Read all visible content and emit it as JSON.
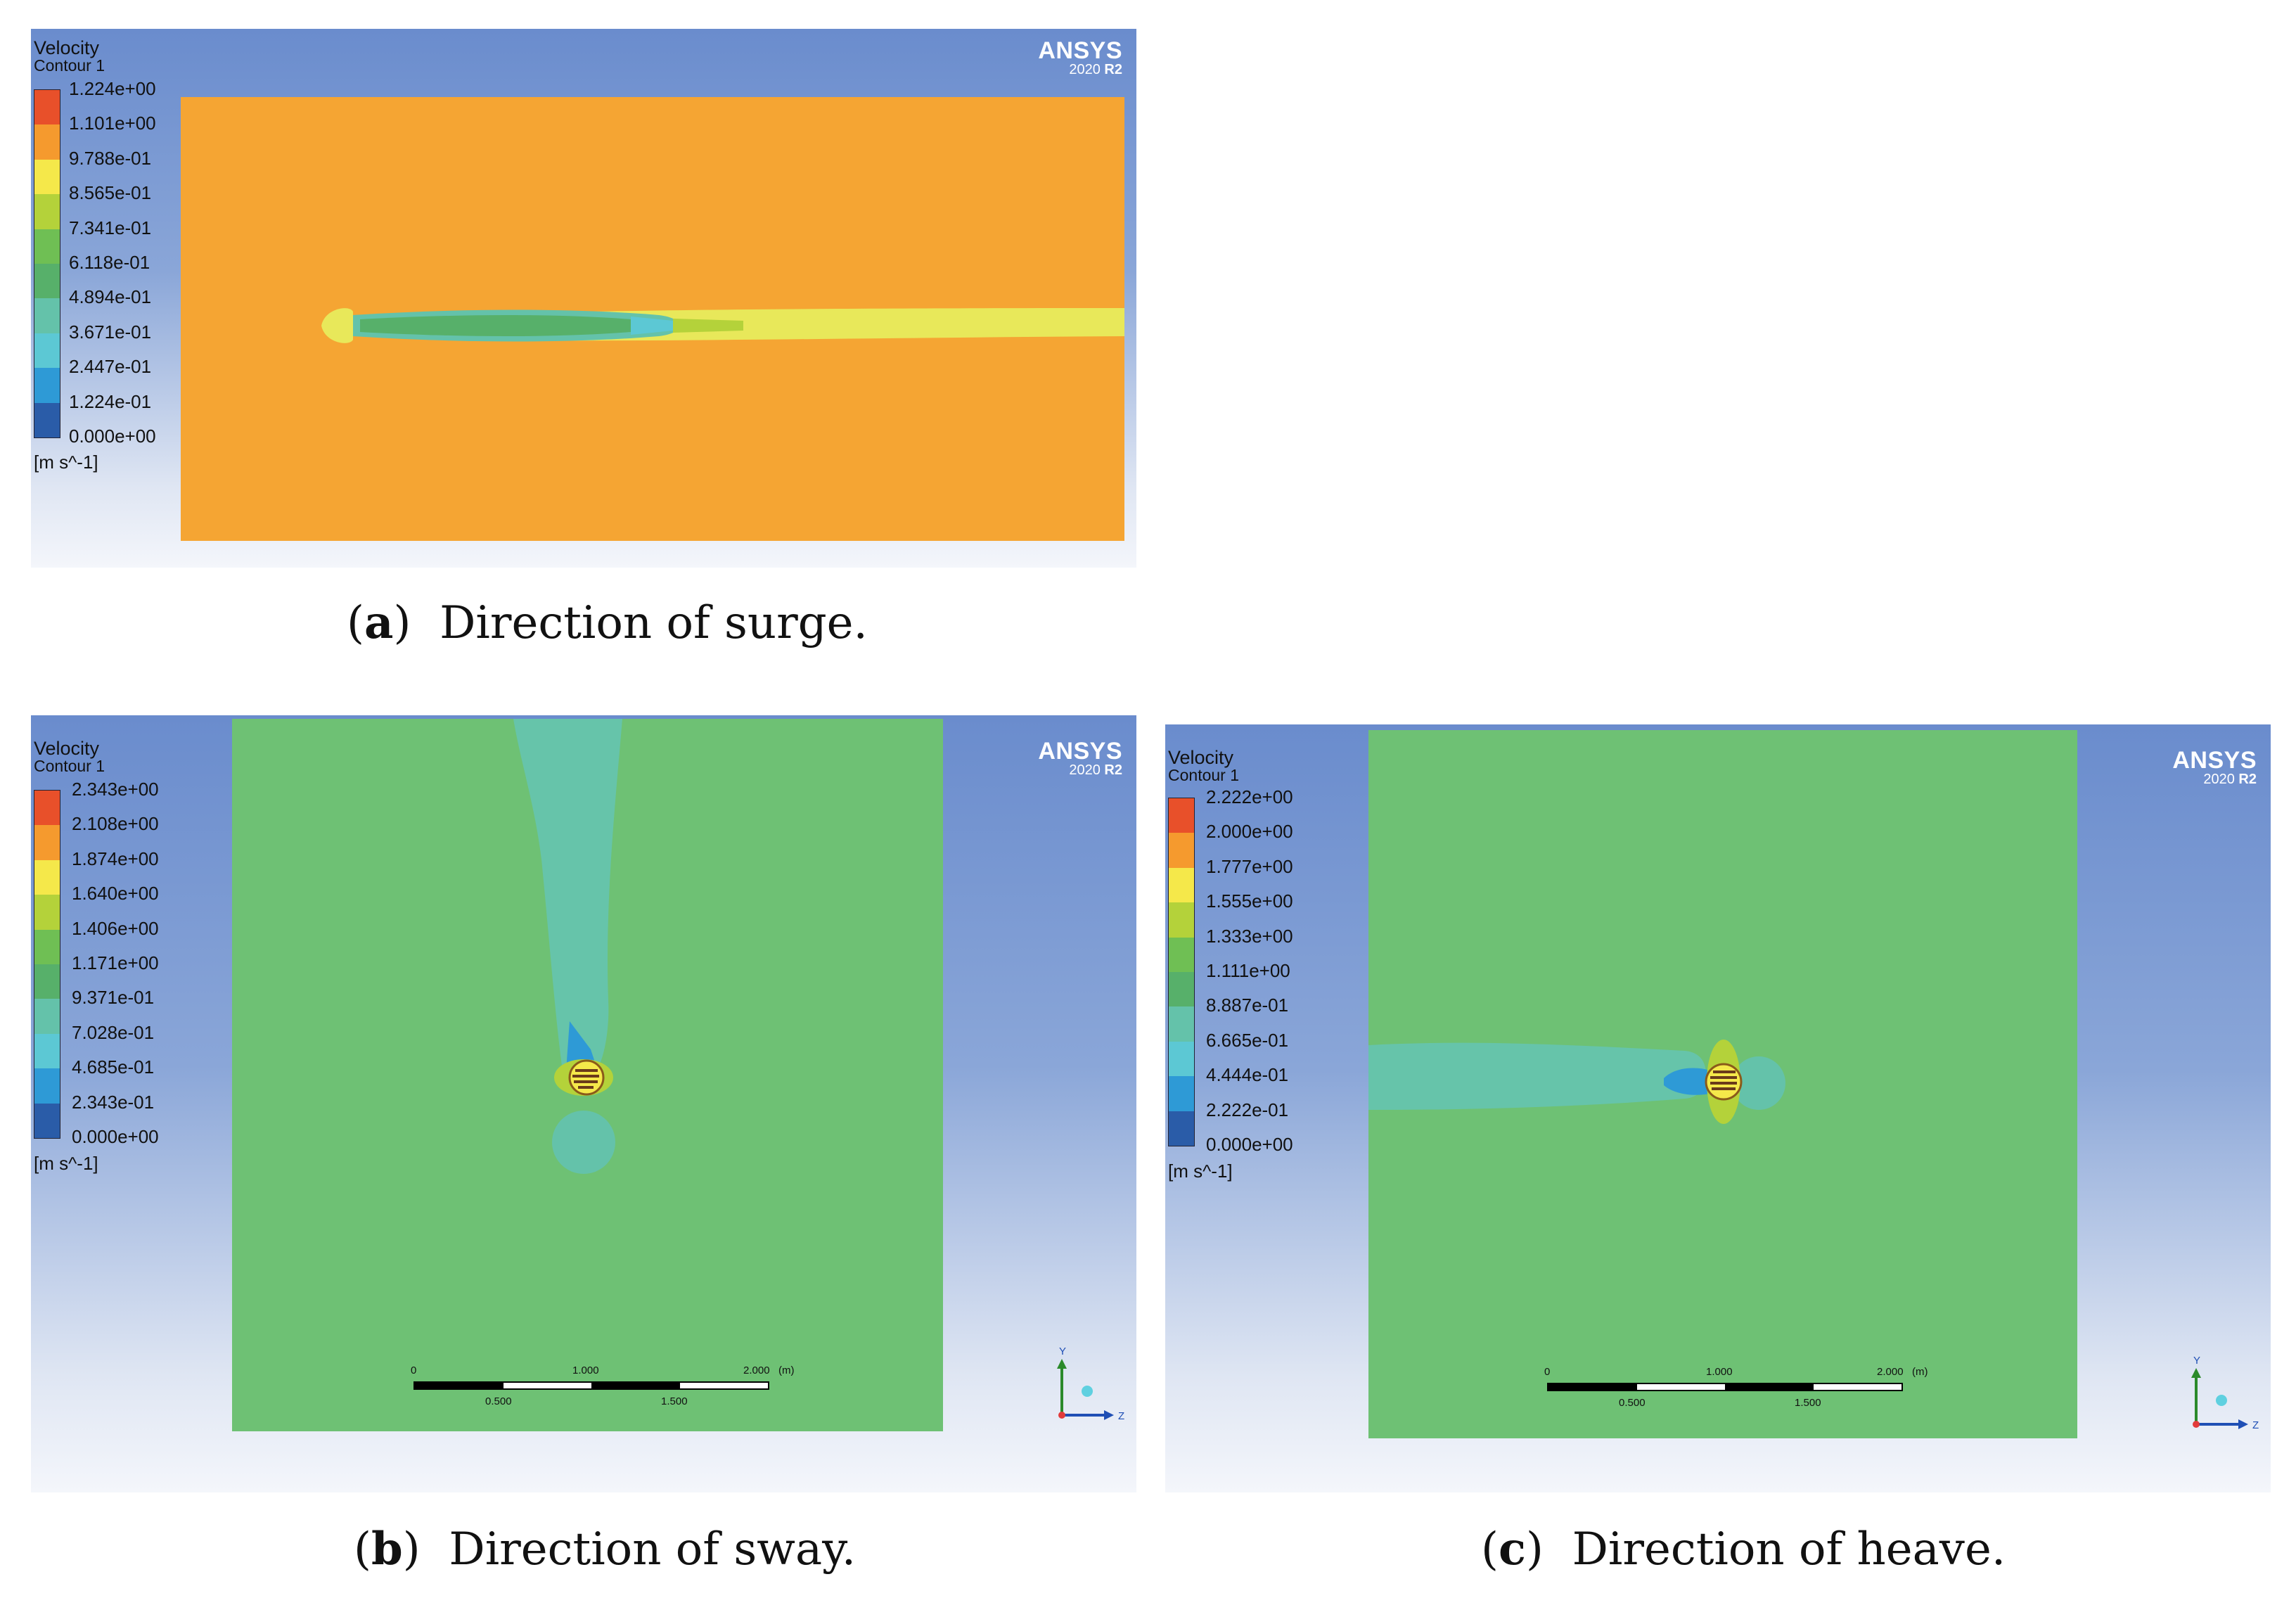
{
  "panels": {
    "a": {
      "legend_title": "Velocity",
      "legend_subtitle": "Contour 1",
      "ticks": [
        "1.224e+00",
        "1.101e+00",
        "9.788e-01",
        "8.565e-01",
        "7.341e-01",
        "6.118e-01",
        "4.894e-01",
        "3.671e-01",
        "2.447e-01",
        "1.224e-01",
        "0.000e+00"
      ],
      "unit": "[m s^-1]",
      "brand": "ANSYS",
      "version": "2020",
      "version_suffix": "R2",
      "caption_label": "a",
      "caption_text": "Direction of surge."
    },
    "b": {
      "legend_title": "Velocity",
      "legend_subtitle": "Contour 1",
      "ticks": [
        "2.343e+00",
        "2.108e+00",
        "1.874e+00",
        "1.640e+00",
        "1.406e+00",
        "1.171e+00",
        "9.371e-01",
        "7.028e-01",
        "4.685e-01",
        "2.343e-01",
        "0.000e+00"
      ],
      "unit": "[m s^-1]",
      "brand": "ANSYS",
      "version": "2020",
      "version_suffix": "R2",
      "scale_top": [
        "0",
        "1.000",
        "2.000",
        "(m)"
      ],
      "scale_bottom": [
        "0.500",
        "1.500"
      ],
      "axis_y": "Y",
      "axis_z": "Z",
      "caption_label": "b",
      "caption_text": "Direction of sway."
    },
    "c": {
      "legend_title": "Velocity",
      "legend_subtitle": "Contour 1",
      "ticks": [
        "2.222e+00",
        "2.000e+00",
        "1.777e+00",
        "1.555e+00",
        "1.333e+00",
        "1.111e+00",
        "8.887e-01",
        "6.665e-01",
        "4.444e-01",
        "2.222e-01",
        "0.000e+00"
      ],
      "unit": "[m s^-1]",
      "brand": "ANSYS",
      "version": "2020",
      "version_suffix": "R2",
      "scale_top": [
        "0",
        "1.000",
        "2.000",
        "(m)"
      ],
      "scale_bottom": [
        "0.500",
        "1.500"
      ],
      "axis_y": "Y",
      "axis_z": "Z",
      "caption_label": "c",
      "caption_text": "Direction of heave."
    }
  },
  "colormap": [
    "#e8502a",
    "#f59a2e",
    "#f5e84a",
    "#b4d23a",
    "#6fbf54",
    "#57b06a",
    "#64c2aa",
    "#5cc8d4",
    "#2e9ad6",
    "#2a5ca8"
  ],
  "field_colors": {
    "surge_freestream": "#f5a533",
    "surge_wake": "#e8e85a",
    "sway_freestream": "#6ec174",
    "sway_wake": "#66c4aa",
    "heave_freestream": "#6ec174",
    "heave_wake": "#66c4aa"
  }
}
